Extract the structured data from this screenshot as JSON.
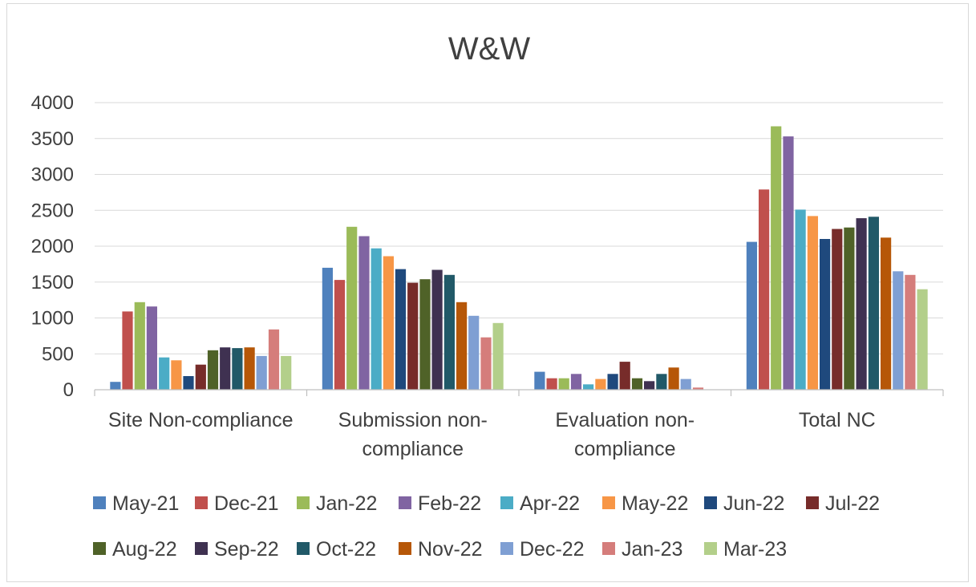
{
  "chart_data": {
    "type": "bar",
    "title": "W&W",
    "categories": [
      [
        "Site Non-compliance"
      ],
      [
        "Submission non-",
        "compliance"
      ],
      [
        "Evaluation non-",
        "compliance"
      ],
      [
        "Total NC"
      ]
    ],
    "ylim": [
      0,
      4000
    ],
    "yticks": [
      0,
      500,
      1000,
      1500,
      2000,
      2500,
      3000,
      3500,
      4000
    ],
    "grid": true,
    "legend_position": "bottom",
    "series": [
      {
        "name": "May-21",
        "color": "#4F81BD",
        "values": [
          110,
          1700,
          250,
          2060
        ]
      },
      {
        "name": "Dec-21",
        "color": "#C0504D",
        "values": [
          1090,
          1530,
          160,
          2790
        ]
      },
      {
        "name": "Jan-22",
        "color": "#9BBB59",
        "values": [
          1220,
          2270,
          160,
          3670
        ]
      },
      {
        "name": "Feb-22",
        "color": "#8064A2",
        "values": [
          1160,
          2140,
          220,
          3530
        ]
      },
      {
        "name": "Apr-22",
        "color": "#4BACC6",
        "values": [
          450,
          1970,
          75,
          2510
        ]
      },
      {
        "name": "May-22",
        "color": "#F79646",
        "values": [
          410,
          1860,
          150,
          2420
        ]
      },
      {
        "name": "Jun-22",
        "color": "#1F497D",
        "values": [
          190,
          1680,
          220,
          2100
        ]
      },
      {
        "name": "Jul-22",
        "color": "#772C2A",
        "values": [
          350,
          1490,
          390,
          2240
        ]
      },
      {
        "name": "Aug-22",
        "color": "#4F6228",
        "values": [
          550,
          1540,
          160,
          2260
        ]
      },
      {
        "name": "Sep-22",
        "color": "#3F3151",
        "values": [
          590,
          1670,
          120,
          2390
        ]
      },
      {
        "name": "Oct-22",
        "color": "#215968",
        "values": [
          580,
          1600,
          220,
          2410
        ]
      },
      {
        "name": "Nov-22",
        "color": "#B65708",
        "values": [
          590,
          1220,
          310,
          2120
        ]
      },
      {
        "name": "Dec-22",
        "color": "#7F9FD3",
        "values": [
          470,
          1030,
          150,
          1650
        ]
      },
      {
        "name": "Jan-23",
        "color": "#D57D7B",
        "values": [
          840,
          730,
          30,
          1600
        ]
      },
      {
        "name": "Mar-23",
        "color": "#B3CF8A",
        "values": [
          470,
          930,
          5,
          1400
        ]
      }
    ]
  }
}
